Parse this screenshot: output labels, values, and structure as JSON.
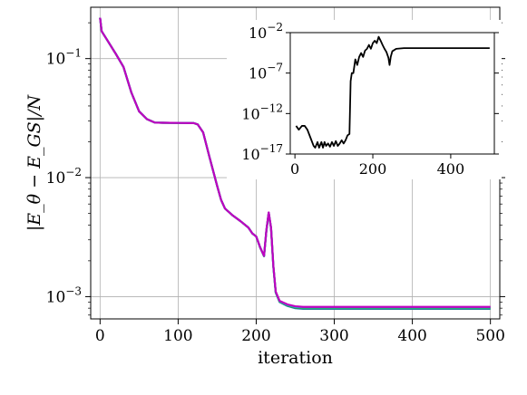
{
  "chart_data": [
    {
      "type": "line",
      "xlabel": "iteration",
      "ylabel": "|E_θ − E_GS|/N",
      "yscale": "log",
      "xlim": [
        -12,
        512
      ],
      "ylim": [
        0.00065,
        0.27
      ],
      "grid": true,
      "x_ticks": [
        0,
        100,
        200,
        300,
        400,
        500
      ],
      "y_ticks": [
        {
          "base": "10",
          "exp": "−1",
          "value": 0.1
        },
        {
          "base": "10",
          "exp": "−2",
          "value": 0.01
        },
        {
          "base": "10",
          "exp": "−3",
          "value": 0.001
        }
      ],
      "series": [
        {
          "color": "#1f77b4",
          "final": 0.00079
        },
        {
          "color": "#2ca02c",
          "final": 0.0008
        },
        {
          "color": "#17becf",
          "final": 0.00081
        },
        {
          "color": "#bf00bf",
          "final": 0.00082
        }
      ],
      "x": [
        0,
        2,
        10,
        20,
        30,
        40,
        50,
        60,
        70,
        80,
        100,
        120,
        125,
        132,
        140,
        150,
        155,
        160,
        170,
        180,
        190,
        195,
        200,
        205,
        210,
        213,
        216,
        219,
        222,
        225,
        230,
        240,
        250,
        260,
        300,
        400,
        500
      ],
      "values": [
        0.22,
        0.17,
        0.14,
        0.11,
        0.085,
        0.052,
        0.036,
        0.031,
        0.029,
        0.0289,
        0.0288,
        0.0287,
        0.028,
        0.024,
        0.015,
        0.0085,
        0.0065,
        0.0055,
        0.0048,
        0.0043,
        0.0038,
        0.0034,
        0.0032,
        0.0026,
        0.0022,
        0.0036,
        0.0051,
        0.0038,
        0.0018,
        0.0011,
        0.00092,
        0.00086,
        0.00083,
        0.00082,
        0.00082,
        0.00082,
        0.00082
      ]
    },
    {
      "type": "line",
      "inset": true,
      "yscale": "log",
      "xlim": [
        -12,
        512
      ],
      "ylim": [
        1e-17,
        0.01
      ],
      "x_ticks": [
        0,
        200,
        400
      ],
      "y_ticks": [
        {
          "base": "10",
          "exp": "−2",
          "value": 0.01
        },
        {
          "base": "10",
          "exp": "−7",
          "value": 1e-07
        },
        {
          "base": "10",
          "exp": "−12",
          "value": 1e-12
        },
        {
          "base": "10",
          "exp": "−17",
          "value": 1e-17
        }
      ],
      "series": [
        {
          "color": "#000000",
          "x": [
            3,
            10,
            18,
            25,
            32,
            40,
            48,
            52,
            58,
            62,
            68,
            72,
            76,
            80,
            85,
            90,
            95,
            100,
            105,
            110,
            115,
            120,
            125,
            130,
            135,
            140,
            143,
            146,
            150,
            155,
            160,
            165,
            170,
            175,
            180,
            185,
            190,
            195,
            200,
            205,
            210,
            215,
            220,
            225,
            230,
            235,
            240,
            243,
            246,
            250,
            260,
            280,
            300,
            350,
            400,
            450,
            500
          ],
          "values": [
            3e-14,
            1e-14,
            3e-14,
            3e-14,
            1e-14,
            1e-15,
            1e-16,
            6e-17,
            3e-16,
            6e-17,
            3e-16,
            6e-17,
            3e-16,
            1e-16,
            2e-16,
            8e-17,
            3e-16,
            1e-16,
            4e-16,
            1e-16,
            2e-16,
            5e-16,
            2e-16,
            5e-16,
            2e-15,
            3e-15,
            1e-08,
            1e-07,
            1e-07,
            5e-06,
            1e-06,
            1e-05,
            3e-05,
            1e-05,
            6e-05,
            0.0001,
            0.0003,
            0.0001,
            0.0005,
            0.001,
            0.0005,
            0.003,
            0.001,
            0.0003,
            0.0001,
            4e-05,
            8e-06,
            1e-06,
            1e-05,
            5e-05,
            0.0001,
            0.00012,
            0.00012,
            0.00012,
            0.00012,
            0.00012,
            0.00012
          ]
        }
      ]
    }
  ]
}
